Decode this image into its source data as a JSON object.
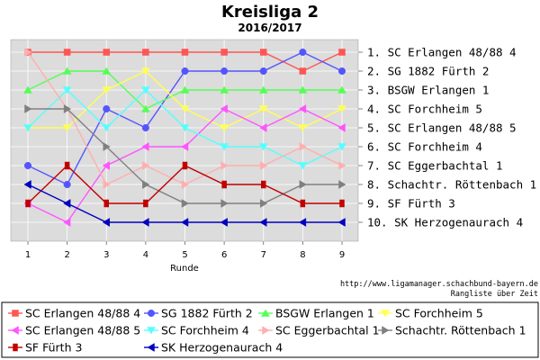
{
  "title": "Kreisliga 2",
  "subtitle": "2016/2017",
  "url_text": "http://www.ligamanager.schachbund-bayern.de",
  "caption": "Rangliste über Zeit",
  "chart_data": {
    "type": "line",
    "title": "Kreisliga 2",
    "subtitle": "2016/2017",
    "xlabel": "Runde",
    "ylabel": "",
    "x": [
      1,
      2,
      3,
      4,
      5,
      6,
      7,
      8,
      9
    ],
    "xlim": [
      0.6,
      9.4
    ],
    "ylim": [
      10.6,
      0.5
    ],
    "y_inverted": true,
    "grid": true,
    "right_axis_labels": [
      "1. SC Erlangen 48/88 4",
      "2. SG 1882 Fürth 2",
      "3. BSGW Erlangen 1",
      "4. SC Forchheim 5",
      "5. SC Erlangen 48/88 5",
      "6. SC Forchheim 4",
      "7. SC Eggerbachtal 1",
      "8. Schachtr. Röttenbach 1",
      "9. SF Fürth 3",
      "10. SK Herzogenaurach 4"
    ],
    "legend_position": "bottom",
    "series": [
      {
        "name": "SC Erlangen 48/88 4",
        "values": [
          1,
          1,
          1,
          1,
          1,
          1,
          1,
          2,
          1
        ],
        "color": "#ff5555",
        "marker": "square"
      },
      {
        "name": "SG 1882 Fürth 2",
        "values": [
          7,
          8,
          4,
          5,
          2,
          2,
          2,
          1,
          2
        ],
        "color": "#5555ff",
        "marker": "circle"
      },
      {
        "name": "BSGW Erlangen 1",
        "values": [
          3,
          2,
          2,
          4,
          3,
          3,
          3,
          3,
          3
        ],
        "color": "#55ff55",
        "marker": "triangle-up"
      },
      {
        "name": "SC Forchheim 5",
        "values": [
          5,
          5,
          3,
          2,
          4,
          5,
          4,
          5,
          4
        ],
        "color": "#ffff55",
        "marker": "triangle-down"
      },
      {
        "name": "SC Erlangen 48/88 5",
        "values": [
          9,
          10,
          7,
          6,
          6,
          4,
          5,
          4,
          5
        ],
        "color": "#ff55ff",
        "marker": "triangle-left"
      },
      {
        "name": "SC Forchheim 4",
        "values": [
          5,
          3,
          5,
          3,
          5,
          6,
          6,
          7,
          6
        ],
        "color": "#55ffff",
        "marker": "triangle-down"
      },
      {
        "name": "SC Eggerbachtal 1",
        "values": [
          1,
          4,
          8,
          7,
          8,
          7,
          7,
          6,
          7
        ],
        "color": "#ffafaf",
        "marker": "triangle-right"
      },
      {
        "name": "Schachtr. Röttenbach 1",
        "values": [
          4,
          4,
          6,
          8,
          9,
          9,
          9,
          8,
          8
        ],
        "color": "#808080",
        "marker": "triangle-right"
      },
      {
        "name": "SF Fürth 3",
        "values": [
          9,
          7,
          9,
          9,
          7,
          8,
          8,
          9,
          9
        ],
        "color": "#c00000",
        "marker": "square-tall"
      },
      {
        "name": "SK Herzogenaurach 4",
        "values": [
          8,
          9,
          10,
          10,
          10,
          10,
          10,
          10,
          10
        ],
        "color": "#0000c0",
        "marker": "triangle-left"
      }
    ]
  }
}
